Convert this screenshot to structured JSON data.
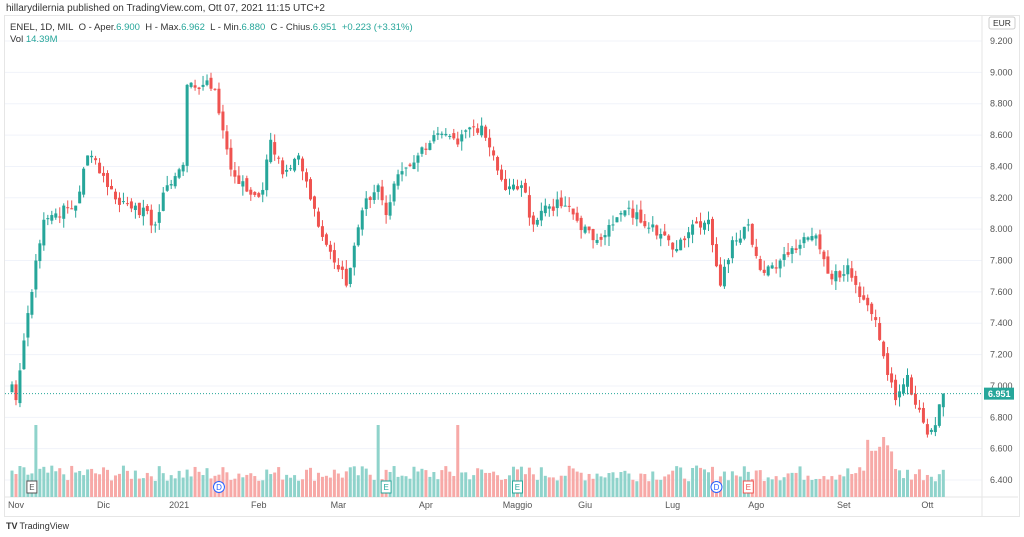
{
  "header": {
    "published": "hillarydilernia published on TradingView.com, Ott 07, 2021 11:15 UTC+2"
  },
  "legend": {
    "symbol": "ENEL, 1D, MIL",
    "o_label": "O - Aper.",
    "o": "6.900",
    "h_label": "H - Max.",
    "h": "6.962",
    "l_label": "L - Min.",
    "l": "6.880",
    "c_label": "C - Chius.",
    "c": "6.951",
    "change": "+0.223 (+3.31%)",
    "vol_label": "Vol",
    "vol": "14.39M"
  },
  "currency": "EUR",
  "footer": {
    "brand": "TradingView"
  },
  "colors": {
    "up": "#26a69a",
    "down": "#ef5350",
    "up_vol": "#8fd3cb",
    "down_vol": "#f7a9a7"
  },
  "chart_data": {
    "type": "candlestick",
    "title": "ENEL, 1D, MIL",
    "ylim": [
      6.3,
      9.25
    ],
    "y_ticks": [
      "9.200",
      "9.000",
      "8.800",
      "8.600",
      "8.400",
      "8.200",
      "8.000",
      "7.800",
      "7.600",
      "7.400",
      "7.200",
      "7.000",
      "6.800",
      "6.600",
      "6.400"
    ],
    "last_price": "6.951",
    "bars": 235,
    "close_keyframes": [
      [
        0,
        7.01
      ],
      [
        1,
        6.91
      ],
      [
        3,
        7.29
      ],
      [
        6,
        7.8
      ],
      [
        8,
        8.06
      ],
      [
        10,
        8.09
      ],
      [
        16,
        8.15
      ],
      [
        19,
        8.47
      ],
      [
        21,
        8.44
      ],
      [
        26,
        8.19
      ],
      [
        31,
        8.15
      ],
      [
        36,
        8.03
      ],
      [
        39,
        8.28
      ],
      [
        43,
        8.41
      ],
      [
        44,
        8.92
      ],
      [
        48,
        8.92
      ],
      [
        51,
        8.89
      ],
      [
        53,
        8.63
      ],
      [
        55,
        8.38
      ],
      [
        60,
        8.22
      ],
      [
        63,
        8.25
      ],
      [
        65,
        8.57
      ],
      [
        68,
        8.35
      ],
      [
        72,
        8.47
      ],
      [
        75,
        8.19
      ],
      [
        79,
        7.9
      ],
      [
        83,
        7.74
      ],
      [
        84,
        7.64
      ],
      [
        88,
        8.12
      ],
      [
        92,
        8.28
      ],
      [
        94,
        8.09
      ],
      [
        97,
        8.35
      ],
      [
        102,
        8.47
      ],
      [
        106,
        8.6
      ],
      [
        112,
        8.54
      ],
      [
        114,
        8.63
      ],
      [
        118,
        8.66
      ],
      [
        121,
        8.47
      ],
      [
        124,
        8.25
      ],
      [
        128,
        8.28
      ],
      [
        131,
        8.03
      ],
      [
        134,
        8.15
      ],
      [
        139,
        8.15
      ],
      [
        146,
        7.93
      ],
      [
        151,
        8.03
      ],
      [
        154,
        8.12
      ],
      [
        161,
        8.03
      ],
      [
        166,
        7.87
      ],
      [
        171,
        8.03
      ],
      [
        175,
        8.06
      ],
      [
        178,
        7.64
      ],
      [
        181,
        7.93
      ],
      [
        185,
        8.03
      ],
      [
        188,
        7.74
      ],
      [
        193,
        7.8
      ],
      [
        198,
        7.9
      ],
      [
        202,
        7.96
      ],
      [
        206,
        7.68
      ],
      [
        210,
        7.77
      ],
      [
        214,
        7.55
      ],
      [
        217,
        7.42
      ],
      [
        220,
        7.07
      ],
      [
        222,
        6.91
      ],
      [
        225,
        7.07
      ],
      [
        227,
        6.88
      ],
      [
        230,
        6.69
      ],
      [
        232,
        6.75
      ],
      [
        234,
        6.951
      ]
    ],
    "x_ticks": [
      {
        "label": "Nov",
        "bar": 1
      },
      {
        "label": "Dic",
        "bar": 23
      },
      {
        "label": "2021",
        "bar": 42
      },
      {
        "label": "Feb",
        "bar": 62
      },
      {
        "label": "Mar",
        "bar": 82
      },
      {
        "label": "Apr",
        "bar": 104
      },
      {
        "label": "Maggio",
        "bar": 127
      },
      {
        "label": "Giu",
        "bar": 144
      },
      {
        "label": "Lug",
        "bar": 166
      },
      {
        "label": "Ago",
        "bar": 187
      },
      {
        "label": "Set",
        "bar": 209
      },
      {
        "label": "Ott",
        "bar": 230
      }
    ],
    "events": [
      {
        "label": "E",
        "bar": 5,
        "kind": "earnings-past"
      },
      {
        "label": "D",
        "bar": 52,
        "kind": "dividend"
      },
      {
        "label": "E",
        "bar": 94,
        "kind": "earnings"
      },
      {
        "label": "E",
        "bar": 127,
        "kind": "earnings"
      },
      {
        "label": "D",
        "bar": 177,
        "kind": "dividend"
      },
      {
        "label": "E",
        "bar": 185,
        "kind": "earnings-red"
      }
    ]
  }
}
